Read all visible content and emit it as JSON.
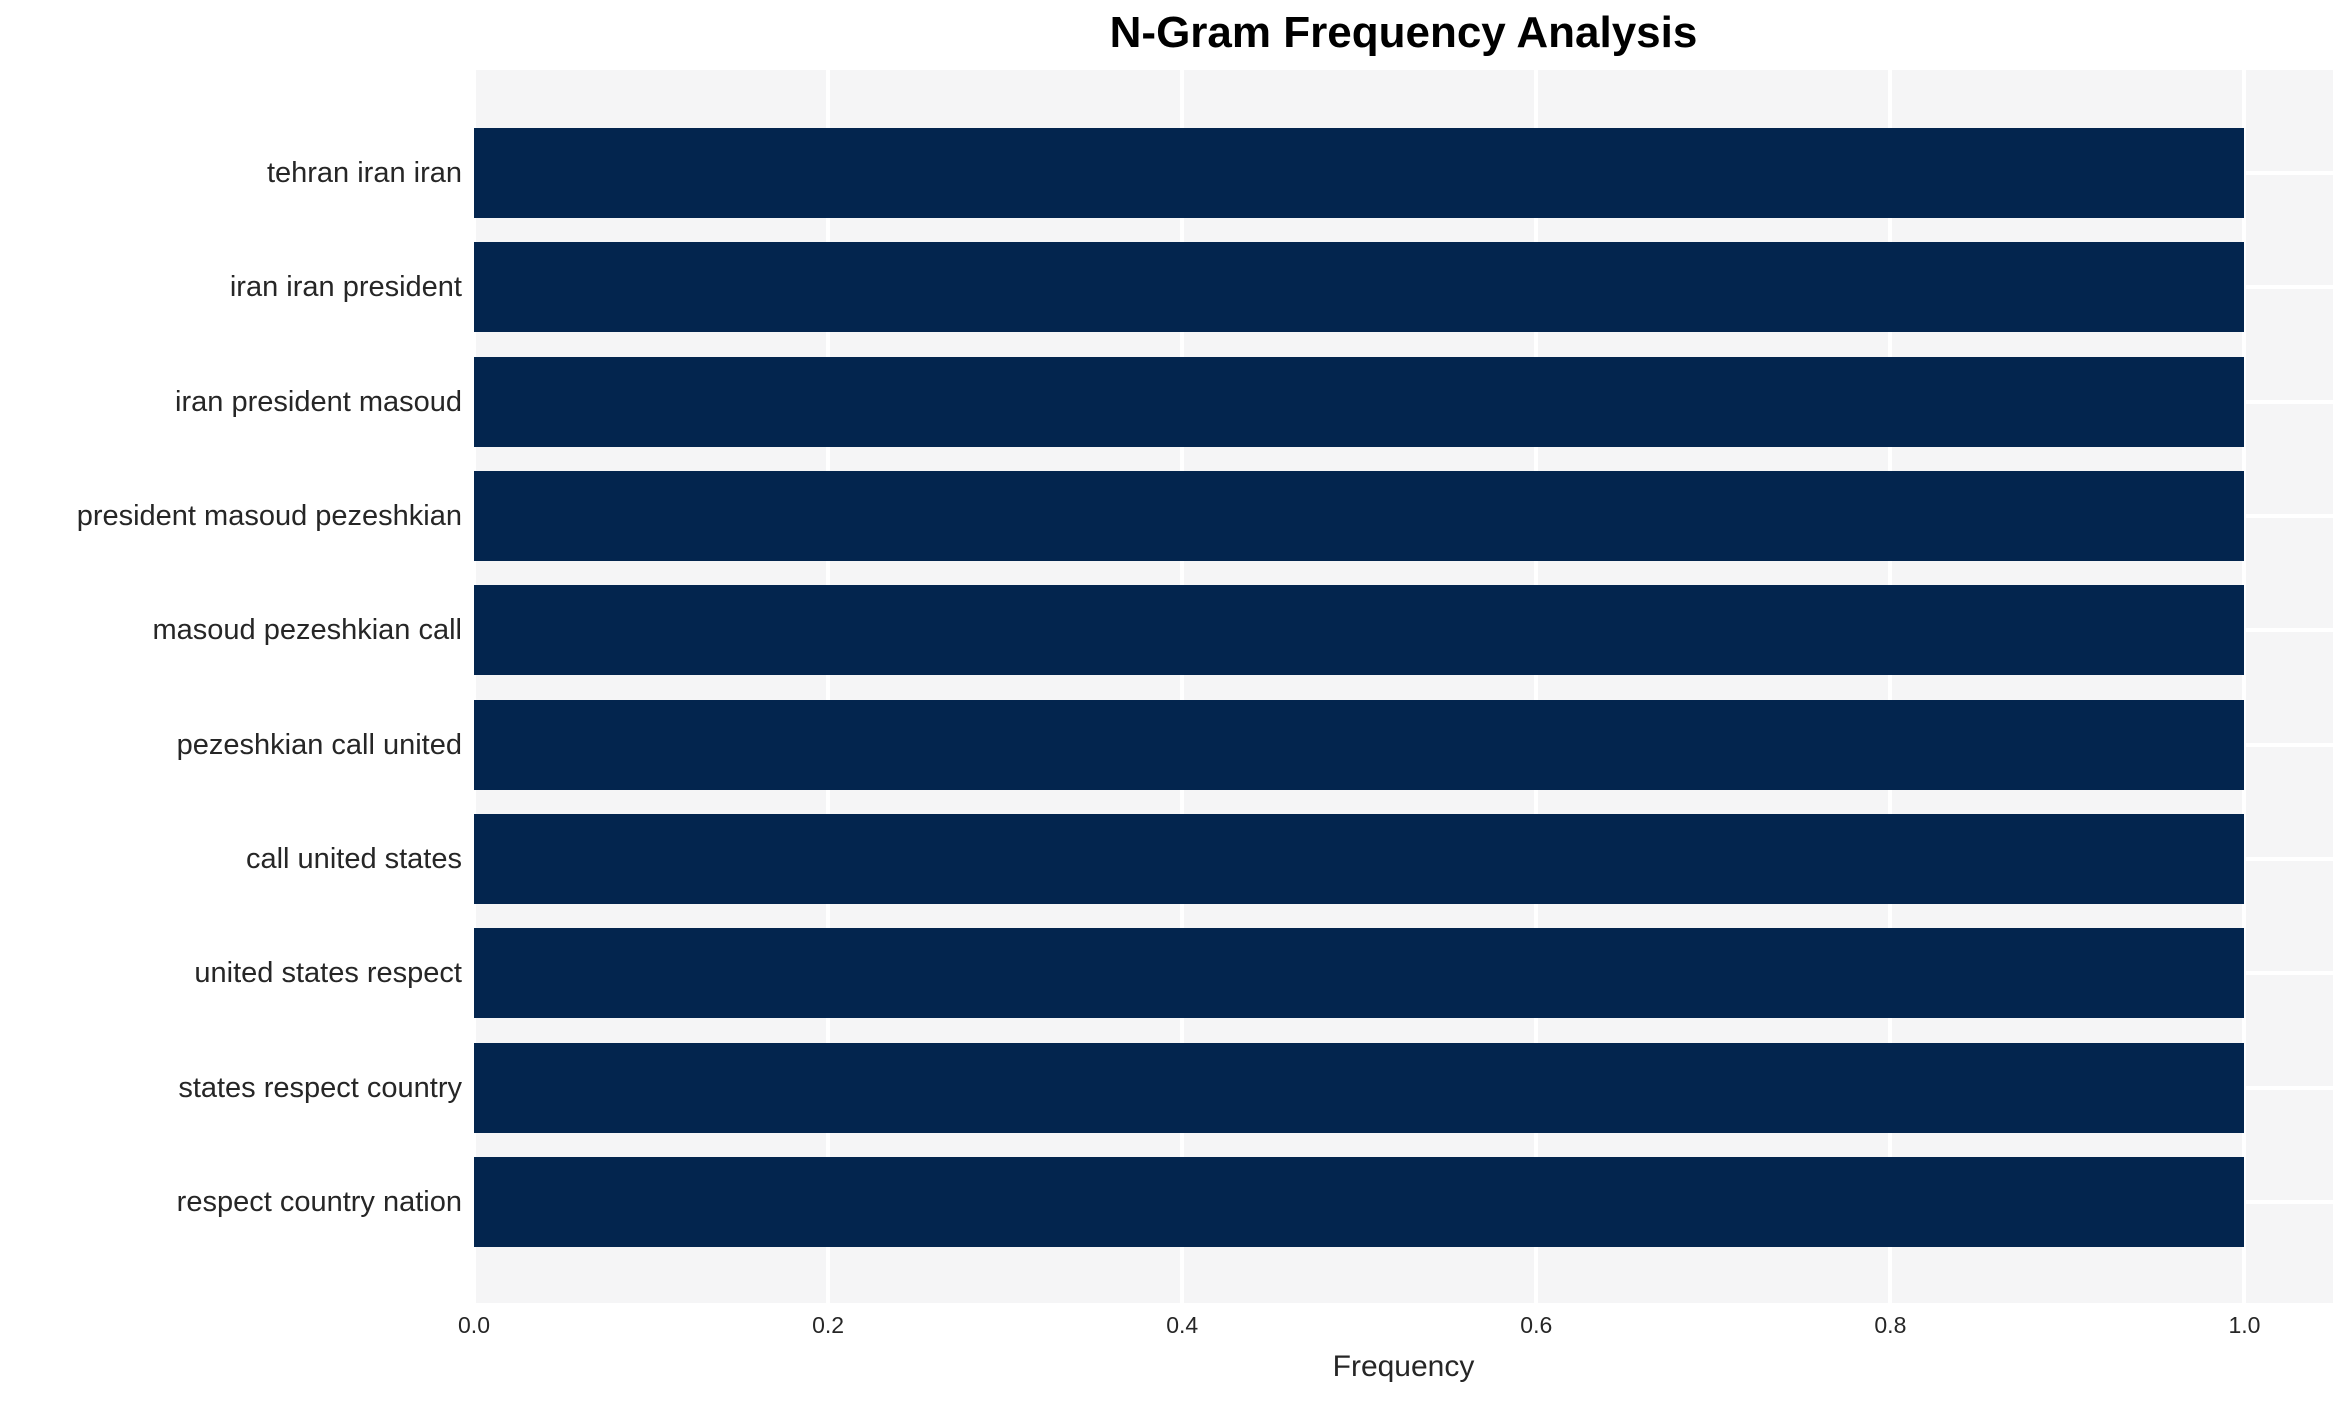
{
  "chart_data": {
    "type": "bar",
    "orientation": "horizontal",
    "title": "N-Gram Frequency Analysis",
    "xlabel": "Frequency",
    "ylabel": "",
    "categories": [
      "tehran iran iran",
      "iran iran president",
      "iran president masoud",
      "president masoud pezeshkian",
      "masoud pezeshkian call",
      "pezeshkian call united",
      "call united states",
      "united states respect",
      "states respect country",
      "respect country nation"
    ],
    "values": [
      1.0,
      1.0,
      1.0,
      1.0,
      1.0,
      1.0,
      1.0,
      1.0,
      1.0,
      1.0
    ],
    "xlim": [
      0,
      1.05
    ],
    "xticks": [
      0.0,
      0.2,
      0.4,
      0.6,
      0.8,
      1.0
    ],
    "xtick_labels": [
      "0.0",
      "0.2",
      "0.4",
      "0.6",
      "0.8",
      "1.0"
    ],
    "grid": true,
    "legend_position": "none",
    "colors": {
      "bar": "#03254e",
      "plot_background": "#f5f5f6",
      "gridline": "#ffffff",
      "title_text": "#000000",
      "tick_text": "#262626"
    }
  }
}
